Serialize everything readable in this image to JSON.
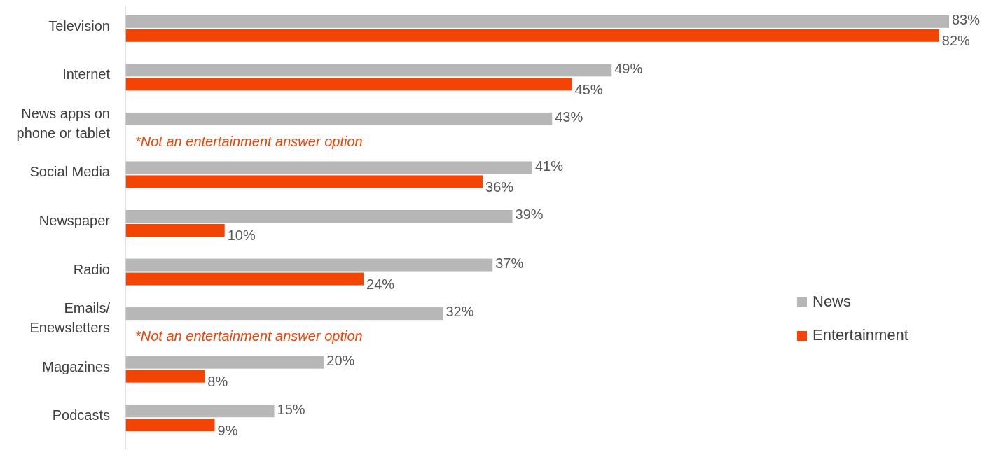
{
  "chart_data": {
    "type": "bar",
    "orientation": "horizontal",
    "categories": [
      "Television",
      "Internet",
      "News apps on phone or tablet",
      "Social Media",
      "Newspaper",
      "Radio",
      "Emails/ Enewsletters",
      "Magazines",
      "Podcasts"
    ],
    "series": [
      {
        "name": "News",
        "color": "#b7b7b7",
        "values": [
          83,
          49,
          43,
          41,
          39,
          37,
          32,
          20,
          15
        ],
        "value_labels": [
          "83%",
          "49%",
          "43%",
          "41%",
          "39%",
          "37%",
          "32%",
          "20%",
          "15%"
        ]
      },
      {
        "name": "Entertainment",
        "color": "#f24405",
        "values": [
          82,
          45,
          null,
          36,
          10,
          24,
          null,
          8,
          9
        ],
        "value_labels": [
          "82%",
          "45%",
          null,
          "36%",
          "10%",
          "24%",
          null,
          "8%",
          "9%"
        ]
      }
    ],
    "annotations": [
      {
        "text": "*Not an entertainment answer option",
        "y": "News apps on phone or tablet"
      },
      {
        "text": "*Not an entertainment answer option",
        "y": "Emails/ Enewsletters"
      }
    ],
    "legend": "right"
  }
}
